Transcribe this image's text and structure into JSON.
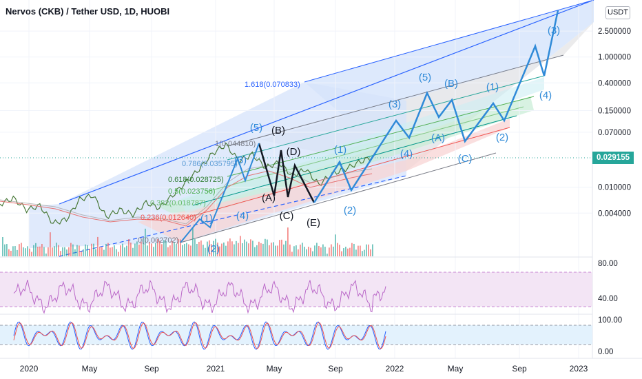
{
  "header": {
    "title": "Nervos (CKB) / Tether USD, 1D, HUOBI",
    "currency": "USDT",
    "last_price": "0.029155"
  },
  "colors": {
    "up": "#26a69a",
    "down": "#ef5350",
    "channel_blue": "#2962ff",
    "wave_blue": "#2f8ad8",
    "projection_fill": "#cfe0fb",
    "rsi_fill": "#f3e5f5",
    "rsi_line": "#ba68c8",
    "stoch_fill": "#e3f2fd",
    "stoch_k": "#2962ff",
    "stoch_d": "#ef5350"
  },
  "chart_data": {
    "type": "line",
    "symbol": "Nervos (CKB) / Tether USD",
    "interval": "1D",
    "exchange": "HUOBI",
    "scale": "log",
    "x_tick_labels": [
      "2020",
      "May",
      "Sep",
      "2021",
      "May",
      "Sep",
      "2022",
      "May",
      "Sep",
      "2023"
    ],
    "price_axis_labels": [
      "2.500000",
      "1.000000",
      "0.400000",
      "0.150000",
      "0.070000",
      "0.010000",
      "0.004000"
    ],
    "rsi_axis_labels": [
      "80.00",
      "40.00"
    ],
    "stoch_axis_labels": [
      "100.00",
      "0.00"
    ],
    "last_price": 0.029155,
    "fib_levels": [
      {
        "label": "1.618(0.070833)",
        "value": 0.070833
      },
      {
        "label": "1(0.044810)",
        "value": 0.04481
      },
      {
        "label": "0.786(0.035795)",
        "value": 0.035795
      },
      {
        "label": "0.618(0.028725)",
        "value": 0.028725
      },
      {
        "label": "0.5(0.023756)",
        "value": 0.023756
      },
      {
        "label": "0.382(0.018787)",
        "value": 0.018787
      },
      {
        "label": "0.236(0.012640)",
        "value": 0.01264
      },
      {
        "label": "0(0.002702)",
        "value": 0.002702
      }
    ],
    "wave_labels": [
      "(1)",
      "(2)",
      "(3)",
      "(4)",
      "(5)",
      "(A)",
      "(B)",
      "(C)",
      "(D)",
      "(E)",
      "(1)",
      "(2)",
      "(3)",
      "(4)",
      "(5)",
      "(A)",
      "(B)",
      "(C)",
      "(1)",
      "(2)",
      "(3)",
      "(4)"
    ],
    "series": [
      {
        "values": [
          0.0055,
          0.0068,
          0.0045,
          0.0052,
          0.0028,
          0.0032,
          0.0065,
          0.0075,
          0.0035,
          0.0045,
          0.0038,
          0.0058,
          0.0048,
          0.0075,
          0.012,
          0.019,
          0.033,
          0.045,
          0.025,
          0.032,
          0.02,
          0.024,
          0.015,
          0.019,
          0.011,
          0.016,
          0.019,
          0.024,
          0.029
        ]
      }
    ]
  }
}
